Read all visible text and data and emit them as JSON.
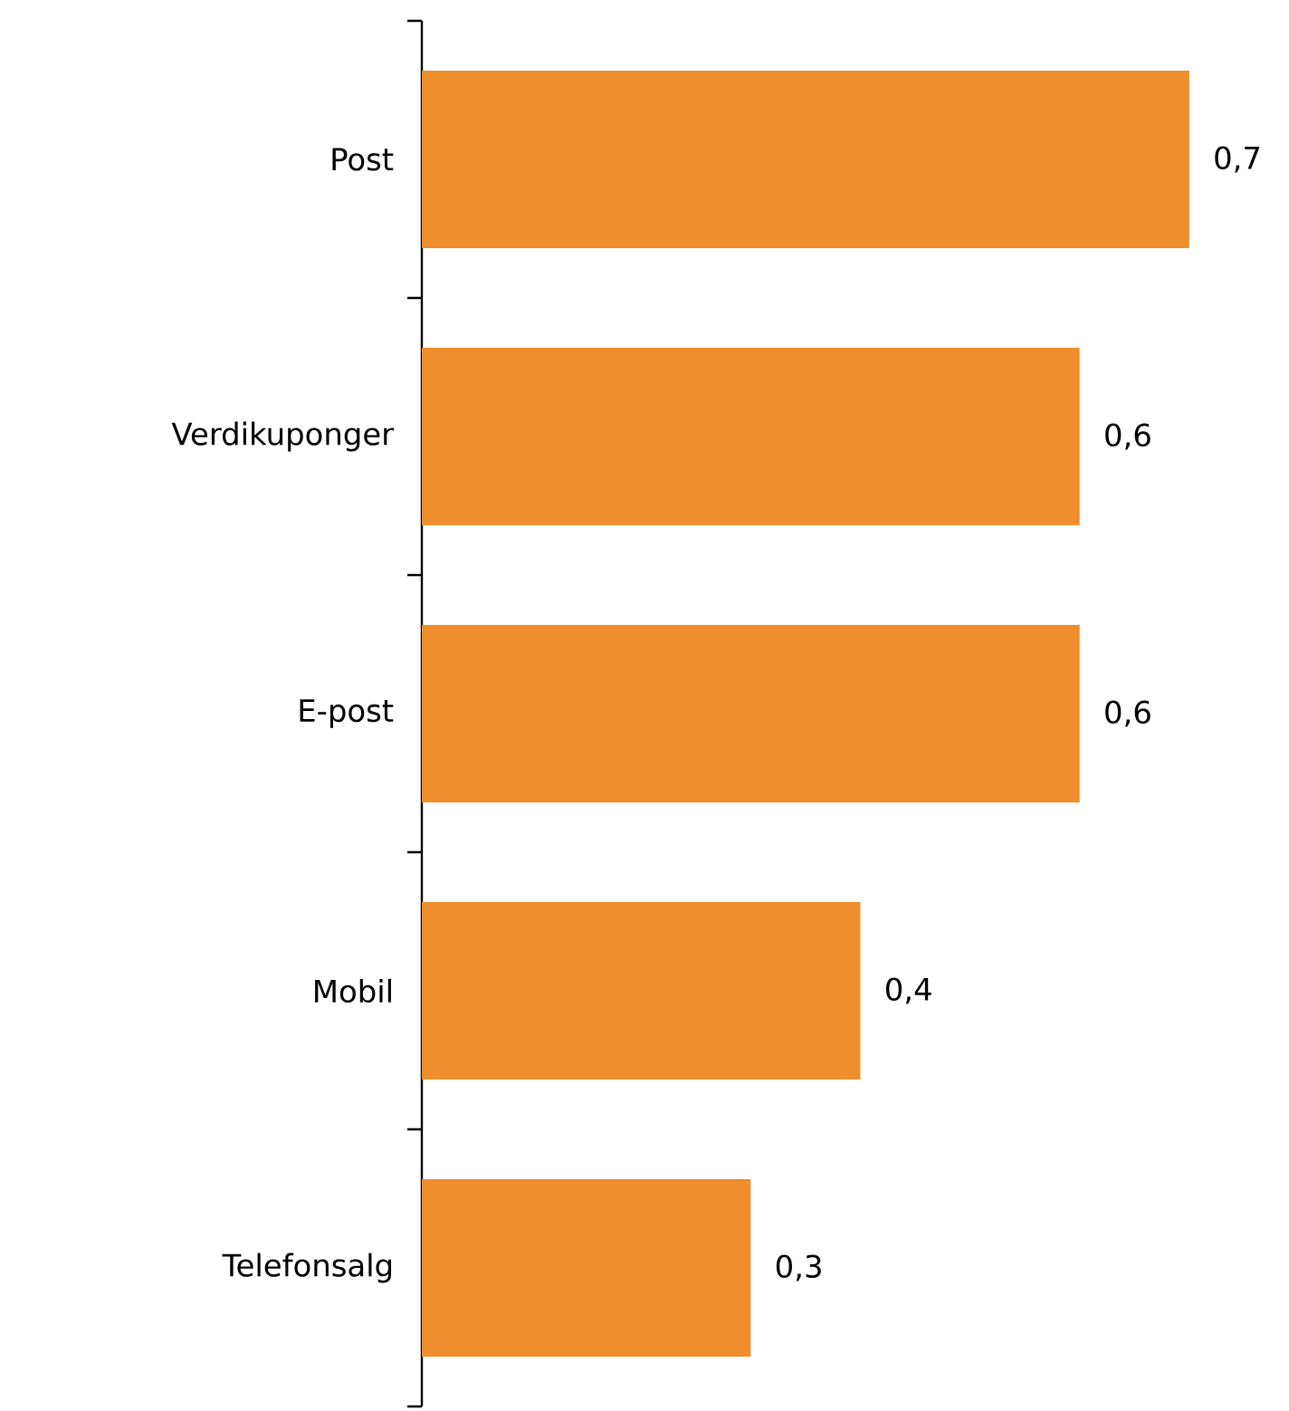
{
  "chart_data": {
    "type": "bar",
    "orientation": "horizontal",
    "categories": [
      "Post",
      "Verdikuponger",
      "E-post",
      "Mobil",
      "Telefonsalg"
    ],
    "values": [
      0.7,
      0.6,
      0.6,
      0.4,
      0.3
    ],
    "value_labels": [
      "0,7",
      "0,6",
      "0,6",
      "0,4",
      "0,3"
    ],
    "color": "#ee8e2c"
  }
}
